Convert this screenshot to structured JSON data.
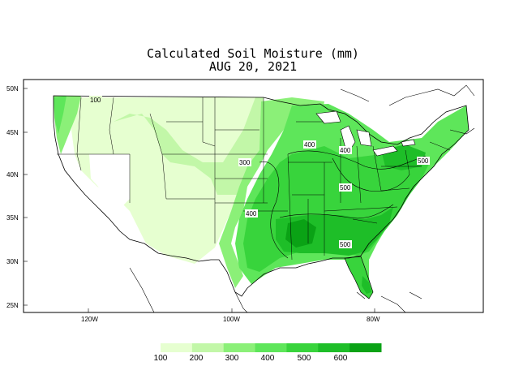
{
  "title": {
    "line1": "Calculated Soil Moisture (mm)",
    "line2": "AUG 20, 2021"
  },
  "axes": {
    "lat_labels": [
      "50N",
      "45N",
      "40N",
      "35N",
      "30N",
      "25N"
    ],
    "lon_labels": [
      "120W",
      "100W",
      "80W"
    ]
  },
  "contour_labels": [
    "100",
    "300",
    "400",
    "400",
    "400",
    "500",
    "500",
    "500"
  ],
  "legend": {
    "colors": [
      "#e6ffd0",
      "#c2f7a8",
      "#8bf078",
      "#5ee65a",
      "#38d43c",
      "#1ebe28",
      "#0aa215"
    ],
    "labels": [
      "100",
      "200",
      "300",
      "400",
      "500",
      "600"
    ]
  },
  "colors": {
    "land_lt100": "#ffffff",
    "c100_200": "#e6ffd0",
    "c200_300": "#c2f7a8",
    "c300_400": "#8bf078",
    "c400_500": "#5ee65a",
    "c500_600": "#38d43c",
    "c600_700": "#1ebe28",
    "c700_plus": "#0aa215"
  }
}
